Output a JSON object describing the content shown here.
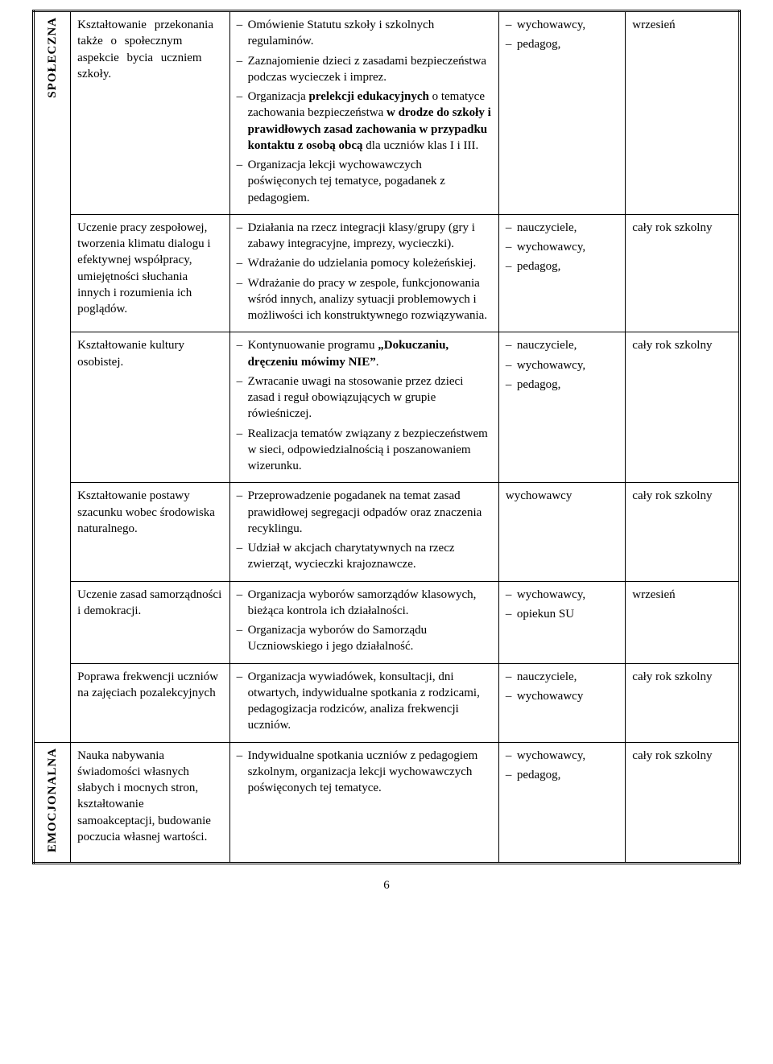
{
  "page_number": "6",
  "sections": [
    {
      "area": "SPOŁECZNA",
      "rows": [
        {
          "goal": "Kształtowanie przekonania także o społecznym aspekcie bycia uczniem szkoły.",
          "goal_wspaced": true,
          "items": [
            "Omówienie Statutu szkoły i szkolnych regulaminów.",
            "Zaznajomienie dzieci z zasadami bezpieczeństwa podczas wycieczek i imprez.",
            "Organizacja <b>prelekcji edukacyjnych</b> o tematyce zachowania bezpieczeństwa <b>w drodze do szkoły i prawidłowych zasad zachowania w przypadku kontaktu z osobą obcą</b> dla uczniów klas I i III.",
            "Organizacja lekcji wychowawczych poświęconych tej tematyce, pogadanek z pedagogiem."
          ],
          "responsible": [
            "wychowawcy,",
            "pedagog,"
          ],
          "term": "wrzesień"
        },
        {
          "goal": "Uczenie pracy zespołowej, tworzenia klimatu dialogu i efektywnej współpracy, umiejętności słuchania innych i rozumienia ich poglądów.",
          "items": [
            "Działania na rzecz integracji klasy/grupy (gry i zabawy integracyjne, imprezy, wycieczki).",
            "Wdrażanie do udzielania pomocy koleżeńskiej.",
            "Wdrażanie do pracy w zespole, funkcjonowania wśród innych, analizy sytuacji problemowych i możliwości ich konstruktywnego rozwiązywania."
          ],
          "responsible": [
            "nauczyciele,",
            "wychowawcy,",
            "pedagog,"
          ],
          "term": "cały rok szkolny"
        },
        {
          "goal": "Kształtowanie kultury osobistej.",
          "items": [
            "Kontynuowanie programu <b>„Dokuczaniu, dręczeniu mówimy NIE”</b>.",
            "Zwracanie uwagi na stosowanie przez dzieci zasad i reguł obowiązujących w grupie rówieśniczej.",
            "Realizacja tematów związany z bezpieczeństwem w sieci, odpowiedzialnością i poszanowaniem wizerunku."
          ],
          "responsible": [
            "nauczyciele,",
            "wychowawcy,",
            "pedagog,"
          ],
          "term": "cały rok szkolny"
        },
        {
          "goal": "Kształtowanie postawy szacunku wobec środowiska naturalnego.",
          "items": [
            "Przeprowadzenie pogadanek na temat zasad prawidłowej segregacji odpadów oraz znaczenia recyklingu.",
            "Udział w akcjach charytatywnych na rzecz zwierząt, wycieczki krajoznawcze."
          ],
          "responsible_plain": "wychowawcy",
          "term": "cały rok szkolny"
        },
        {
          "goal": "Uczenie zasad samorządności i demokracji.",
          "items": [
            "Organizacja wyborów samorządów klasowych, bieżąca kontrola ich działalności.",
            "Organizacja wyborów do Samorządu Uczniowskiego i jego działalność."
          ],
          "responsible": [
            "wychowawcy,",
            "opiekun SU"
          ],
          "term": "wrzesień"
        },
        {
          "goal": "Poprawa frekwencji uczniów na zajęciach pozalekcyjnych",
          "items": [
            "Organizacja wywiadówek, konsultacji, dni otwartych, indywidualne spotkania z rodzicami, pedagogizacja rodziców, analiza frekwencji uczniów."
          ],
          "responsible": [
            "nauczyciele,",
            "wychowawcy"
          ],
          "term": "cały rok szkolny"
        }
      ]
    },
    {
      "area": "EMOCJONALNA",
      "rows": [
        {
          "goal": "Nauka nabywania świadomości własnych słabych i mocnych stron, kształtowanie samoakceptacji, budowanie poczucia własnej wartości.",
          "items_justify": [
            "Indywidualne spotkania uczniów z pedagogiem szkolnym, organizacja lekcji wychowawczych poświęconych tej tematyce."
          ],
          "responsible": [
            "wychowawcy,",
            "pedagog,"
          ],
          "term": "cały rok szkolny"
        }
      ]
    }
  ]
}
